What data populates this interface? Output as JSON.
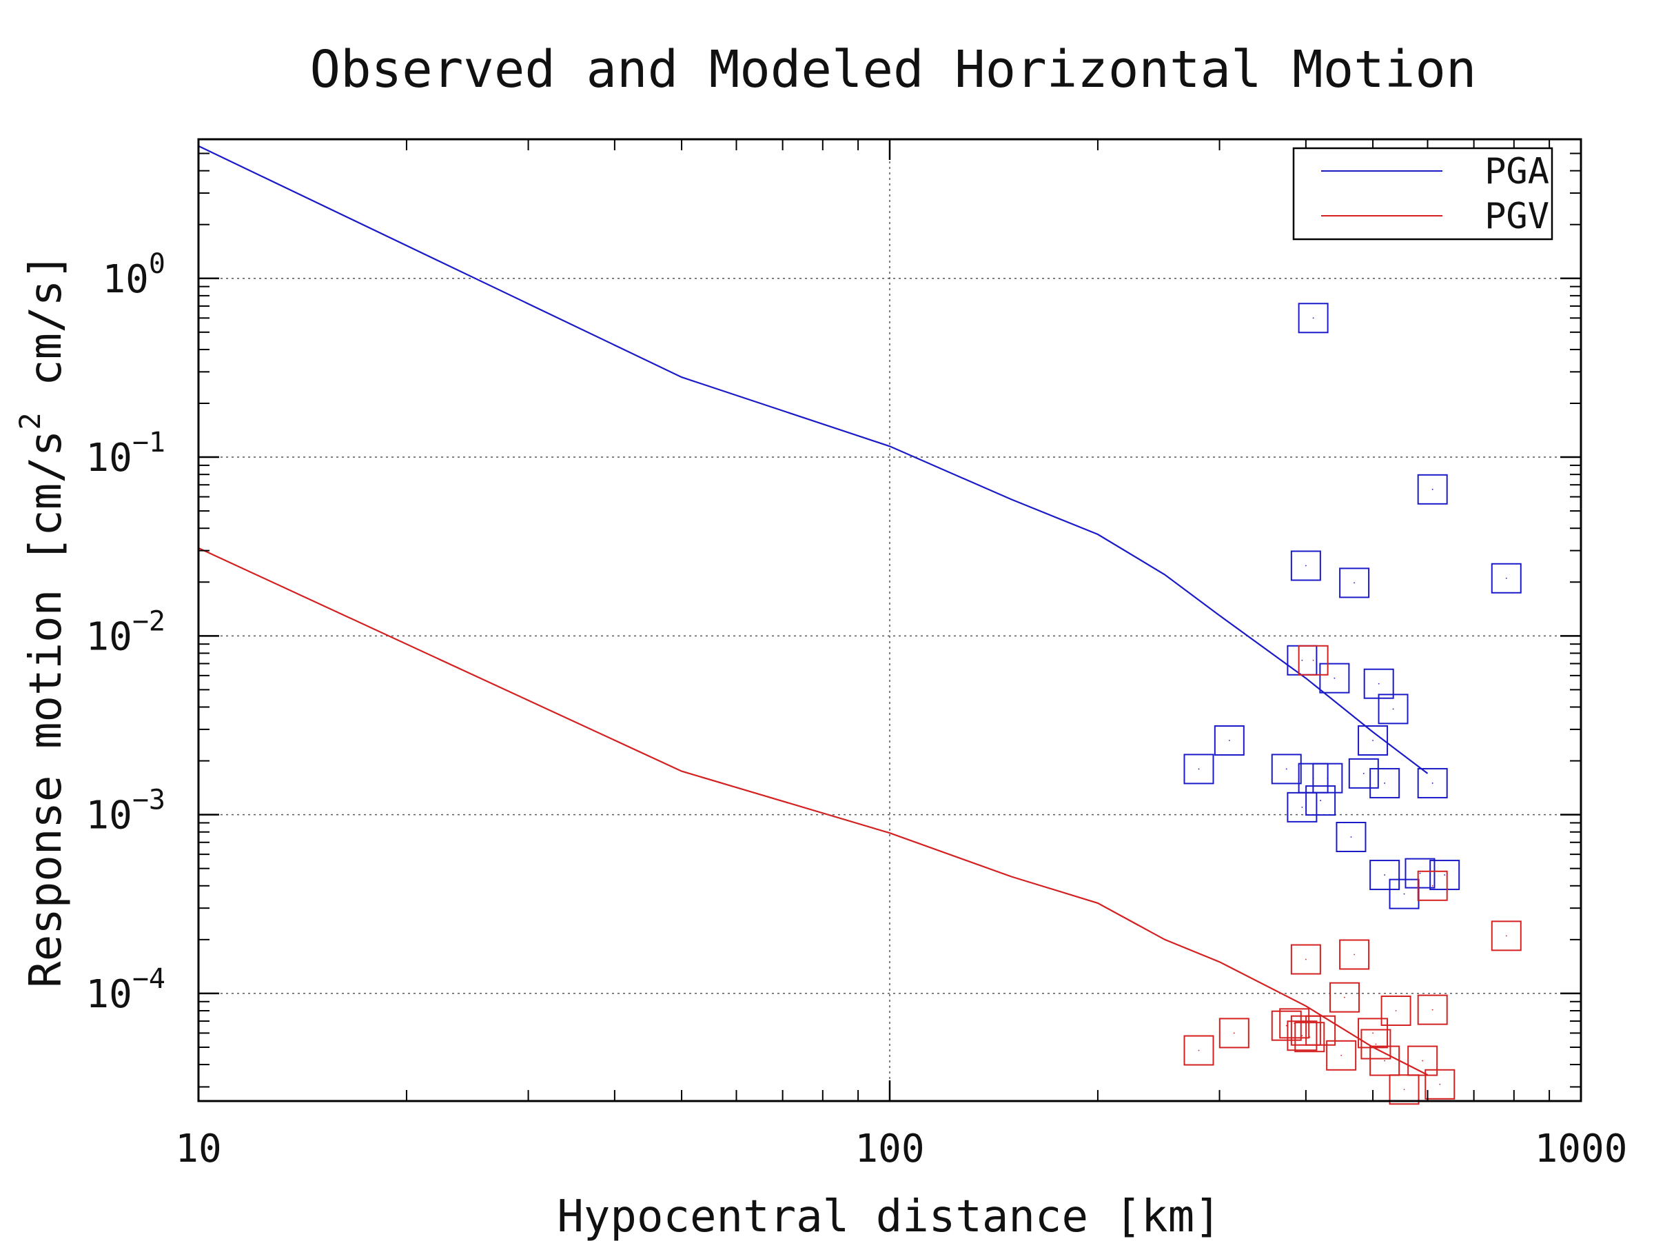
{
  "chart_data": {
    "type": "scatter",
    "title": "Observed and Modeled Horizontal Motion",
    "xlabel": "Hypocentral distance [km]",
    "ylabel": "Response motion  [cm/s² cm/s]",
    "ylabel_parts": {
      "pre": "Response motion  [cm/s",
      "sup": "2",
      "post": "  cm/s]"
    },
    "x_scale": "log",
    "y_scale": "log",
    "xlim": [
      10,
      1000
    ],
    "ylim": [
      2.5e-05,
      6
    ],
    "x_ticks": [
      {
        "value": 10,
        "label": "10"
      },
      {
        "value": 100,
        "label": "100"
      },
      {
        "value": 1000,
        "label": "1000"
      }
    ],
    "y_ticks": [
      {
        "value": 1,
        "base": "10",
        "exp": "0"
      },
      {
        "value": 0.1,
        "base": "10",
        "exp": "−1"
      },
      {
        "value": 0.01,
        "base": "10",
        "exp": "−2"
      },
      {
        "value": 0.001,
        "base": "10",
        "exp": "−3"
      },
      {
        "value": 0.0001,
        "base": "10",
        "exp": "−4"
      }
    ],
    "grid": true,
    "legend_position": "top-right",
    "series": [
      {
        "name": "PGA",
        "color": "#1a1ac8",
        "model_line": [
          [
            10,
            5.5
          ],
          [
            50,
            0.28
          ],
          [
            100,
            0.115
          ],
          [
            150,
            0.058
          ],
          [
            200,
            0.037
          ],
          [
            250,
            0.022
          ],
          [
            300,
            0.013
          ],
          [
            400,
            0.0058
          ],
          [
            500,
            0.0029
          ],
          [
            600,
            0.0017
          ]
        ],
        "observed": [
          [
            410,
            0.6
          ],
          [
            610,
            0.066
          ],
          [
            780,
            0.021
          ],
          [
            400,
            0.0247
          ],
          [
            470,
            0.0198
          ],
          [
            395,
            0.0073
          ],
          [
            440,
            0.0058
          ],
          [
            510,
            0.0054
          ],
          [
            535,
            0.0039
          ],
          [
            500,
            0.0026
          ],
          [
            280,
            0.0018
          ],
          [
            310,
            0.0026
          ],
          [
            375,
            0.0018
          ],
          [
            410,
            0.0016
          ],
          [
            430,
            0.0016
          ],
          [
            485,
            0.0017
          ],
          [
            520,
            0.0015
          ],
          [
            610,
            0.0015
          ],
          [
            395,
            0.0011
          ],
          [
            420,
            0.0012
          ],
          [
            465,
            0.00075
          ],
          [
            520,
            0.00046
          ],
          [
            585,
            0.00047
          ],
          [
            635,
            0.00046
          ],
          [
            555,
            0.00036
          ]
        ]
      },
      {
        "name": "PGV",
        "color": "#d42020",
        "model_line": [
          [
            10,
            0.031
          ],
          [
            50,
            0.00175
          ],
          [
            100,
            0.00079
          ],
          [
            150,
            0.00045
          ],
          [
            200,
            0.00032
          ],
          [
            250,
            0.0002
          ],
          [
            300,
            0.00015
          ],
          [
            400,
            8.5e-05
          ],
          [
            500,
            5e-05
          ],
          [
            600,
            3.5e-05
          ]
        ],
        "observed": [
          [
            410,
            0.0073
          ],
          [
            610,
            0.0004
          ],
          [
            780,
            0.00021
          ],
          [
            400,
            0.000155
          ],
          [
            470,
            0.000165
          ],
          [
            455,
            9.5e-05
          ],
          [
            540,
            8e-05
          ],
          [
            610,
            8.1e-05
          ],
          [
            385,
            6.8e-05
          ],
          [
            400,
            6.2e-05
          ],
          [
            420,
            6.2e-05
          ],
          [
            280,
            4.8e-05
          ],
          [
            315,
            6e-05
          ],
          [
            375,
            6.6e-05
          ],
          [
            395,
            5.8e-05
          ],
          [
            500,
            6e-05
          ],
          [
            505,
            5.2e-05
          ],
          [
            450,
            4.5e-05
          ],
          [
            520,
            4.2e-05
          ],
          [
            590,
            4.2e-05
          ],
          [
            555,
            2.9e-05
          ],
          [
            625,
            3.1e-05
          ],
          [
            405,
            5.7e-05
          ]
        ]
      }
    ]
  }
}
